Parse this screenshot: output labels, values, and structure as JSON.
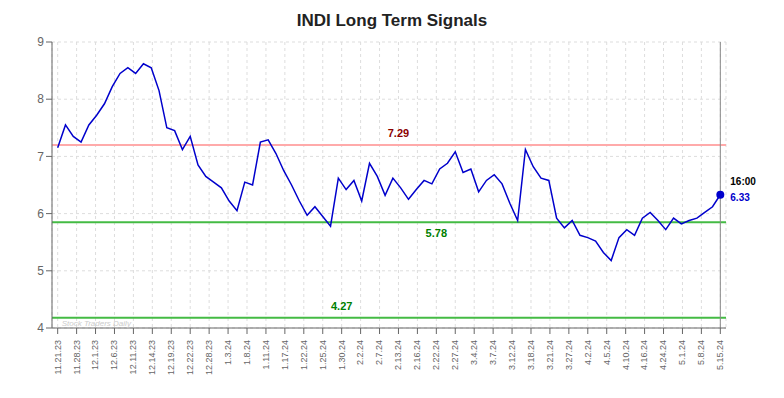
{
  "chart_data": {
    "type": "line",
    "title": "INDI Long Term Signals",
    "color": "#0000cc",
    "x": [
      0,
      0.4118,
      0.8235,
      1.2353,
      1.6471,
      2.0588,
      2.4706,
      2.8824,
      3.2941,
      3.7059,
      4.1176,
      4.5294,
      4.9412,
      5.3529,
      5.7647,
      6.1765,
      6.5882,
      7,
      7.4118,
      7.8235,
      8.2353,
      8.6471,
      9.0588,
      9.4706,
      9.8824,
      10.2941,
      10.7059,
      11.1176,
      11.5294,
      11.9412,
      12.3529,
      12.7647,
      13.1765,
      13.5882,
      14,
      14.4118,
      14.8235,
      15.2353,
      15.6471,
      16.0588,
      16.4706,
      16.8824,
      17.2941,
      17.7059,
      18.1176,
      18.5294,
      18.9412,
      19.3529,
      19.7647,
      20.1765,
      20.5882,
      21,
      21.4118,
      21.8235,
      22.2353,
      22.6471,
      23.0588,
      23.4706,
      23.8824,
      24.2941,
      24.7059,
      25.1176,
      25.5294,
      25.9412,
      26.3529,
      26.7647,
      27.1765,
      27.5882,
      28,
      28.4118,
      28.8235,
      29.2353,
      29.6471,
      30.0588,
      30.4706,
      30.8824,
      31.2941,
      31.7059,
      32.1176,
      32.5294,
      32.9412,
      33.3529,
      33.7647,
      34.1765,
      34.5882,
      35
    ],
    "values": [
      7.15,
      7.55,
      7.35,
      7.25,
      7.55,
      7.72,
      7.92,
      8.22,
      8.45,
      8.55,
      8.45,
      8.62,
      8.55,
      8.15,
      7.5,
      7.45,
      7.12,
      7.35,
      6.85,
      6.65,
      6.55,
      6.45,
      6.22,
      6.05,
      6.55,
      6.5,
      7.25,
      7.29,
      7.05,
      6.75,
      6.5,
      6.22,
      5.97,
      6.12,
      5.95,
      5.78,
      6.62,
      6.42,
      6.58,
      6.22,
      6.88,
      6.65,
      6.32,
      6.62,
      6.45,
      6.25,
      6.42,
      6.58,
      6.52,
      6.78,
      6.88,
      7.08,
      6.72,
      6.78,
      6.38,
      6.58,
      6.68,
      6.52,
      6.18,
      5.88,
      7.12,
      6.82,
      6.62,
      6.58,
      5.92,
      5.75,
      5.88,
      5.62,
      5.58,
      5.52,
      5.32,
      5.18,
      5.58,
      5.72,
      5.62,
      5.92,
      6.02,
      5.88,
      5.72,
      5.92,
      5.82,
      5.88,
      5.92,
      6.02,
      6.12,
      6.33
    ],
    "xlim": [
      -0.3,
      35.3
    ],
    "xticks": [
      {
        "value": 0,
        "label": "11.21.23"
      },
      {
        "value": 1,
        "label": "11.28.23"
      },
      {
        "value": 2,
        "label": "12.1.23"
      },
      {
        "value": 3,
        "label": "12.6.23"
      },
      {
        "value": 4,
        "label": "12.11.23"
      },
      {
        "value": 5,
        "label": "12.14.23"
      },
      {
        "value": 6,
        "label": "12.19.23"
      },
      {
        "value": 7,
        "label": "12.22.23"
      },
      {
        "value": 8,
        "label": "12.28.23"
      },
      {
        "value": 9,
        "label": "1.3.24"
      },
      {
        "value": 10,
        "label": "1.8.24"
      },
      {
        "value": 11,
        "label": "1.11.24"
      },
      {
        "value": 12,
        "label": "1.17.24"
      },
      {
        "value": 13,
        "label": "1.22.24"
      },
      {
        "value": 14,
        "label": "1.25.24"
      },
      {
        "value": 15,
        "label": "1.30.24"
      },
      {
        "value": 16,
        "label": "2.2.24"
      },
      {
        "value": 17,
        "label": "2.7.24"
      },
      {
        "value": 18,
        "label": "2.13.24"
      },
      {
        "value": 19,
        "label": "2.16.24"
      },
      {
        "value": 20,
        "label": "2.22.24"
      },
      {
        "value": 21,
        "label": "2.27.24"
      },
      {
        "value": 22,
        "label": "3.4.24"
      },
      {
        "value": 23,
        "label": "3.7.24"
      },
      {
        "value": 24,
        "label": "3.12.24"
      },
      {
        "value": 25,
        "label": "3.18.24"
      },
      {
        "value": 26,
        "label": "3.21.24"
      },
      {
        "value": 27,
        "label": "3.27.24"
      },
      {
        "value": 28,
        "label": "4.2.24"
      },
      {
        "value": 29,
        "label": "4.5.24"
      },
      {
        "value": 30,
        "label": "4.10.24"
      },
      {
        "value": 31,
        "label": "4.16.24"
      },
      {
        "value": 32,
        "label": "4.24.24"
      },
      {
        "value": 33,
        "label": "5.1.24"
      },
      {
        "value": 34,
        "label": "5.8.24"
      },
      {
        "value": 35,
        "label": "5.15.24"
      }
    ],
    "ylim": [
      4,
      9
    ],
    "yticks": [
      4,
      5,
      6,
      7,
      8,
      9
    ],
    "grid": true,
    "hlines": [
      {
        "y": 7.2,
        "color": "#ffaaaa"
      },
      {
        "y": 5.85,
        "color": "#44bb44"
      },
      {
        "y": 4.18,
        "color": "#44bb44"
      }
    ],
    "vlines": [
      {
        "x": 35,
        "color": "#888888"
      }
    ],
    "annotations": [
      {
        "text": "7.29",
        "x": 18,
        "y": 7.29,
        "color": "#8b0000"
      },
      {
        "text": "5.78",
        "x": 20,
        "y": 5.78,
        "color": "#008000"
      },
      {
        "text": "4.27",
        "x": 15,
        "y": 4.27,
        "color": "#008000"
      }
    ],
    "end_marker": {
      "x": 35,
      "y": 6.33,
      "label": "16:00"
    },
    "watermark": "Stock Traders Daily"
  }
}
